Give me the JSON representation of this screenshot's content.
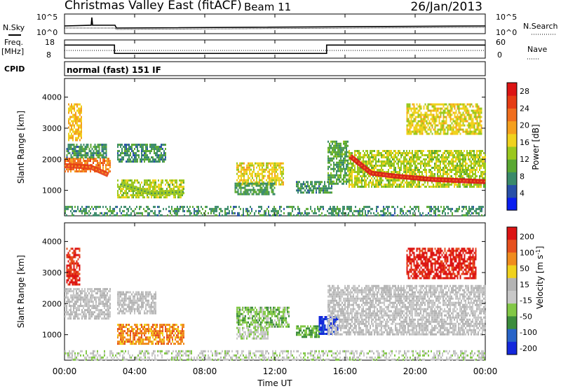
{
  "header": {
    "title": "Christmas Valley East (fitACF)",
    "beam": "Beam 11",
    "date": "26/Jan/2013"
  },
  "noise_panel": {
    "left_label": "N.Sky",
    "right_label": "N.Search",
    "y_ticks_left": [
      "10^5",
      "10^0"
    ],
    "y_ticks_right": [
      "10^5",
      "10^0"
    ]
  },
  "freq_panel": {
    "left_label": "Freq.",
    "left_unit": "[MHz]",
    "right_label": "Nave",
    "y_ticks_left": [
      "18",
      "8"
    ],
    "y_ticks_right": [
      "60",
      "0"
    ],
    "freq_steps": [
      {
        "t": 0.0,
        "f": 15.2
      },
      {
        "t": 2.85,
        "f": 10.6
      },
      {
        "t": 14.95,
        "f": 15.2
      },
      {
        "t": 24.0,
        "f": 15.2
      }
    ]
  },
  "cpid": {
    "label": "CPID",
    "value": "normal (fast) 151 IF"
  },
  "x_axis": {
    "label": "Time UT",
    "ticks": [
      "00:00",
      "04:00",
      "08:00",
      "12:00",
      "16:00",
      "20:00",
      "00:00"
    ],
    "tick_hours": [
      0,
      4,
      8,
      12,
      16,
      20,
      24
    ],
    "range": [
      0,
      24
    ]
  },
  "colors": {
    "power_scale": [
      "#0a1ef0",
      "#2850a8",
      "#3a8a6a",
      "#5aa832",
      "#9ac81e",
      "#f0d21e",
      "#f5a01e",
      "#f06e1e",
      "#e63c14",
      "#dc1414"
    ],
    "velocity_scale": [
      "#1428dc",
      "#2864c8",
      "#3c8c3c",
      "#82c846",
      "#c8c8c8",
      "#b4b4b4",
      "#f0d21e",
      "#f08c1e",
      "#e6501e",
      "#dc1414"
    ]
  },
  "chart_data": [
    {
      "type": "heatmap",
      "title": "",
      "ylabel": "Slant Range [km]",
      "xlabel": "",
      "y_ticks": [
        "1000",
        "2000",
        "3000",
        "4000"
      ],
      "y_tick_values": [
        1000,
        2000,
        3000,
        4000
      ],
      "ylim": [
        180,
        4600
      ],
      "xlim": [
        0,
        24
      ],
      "colorbar": {
        "label": "Power [dB]",
        "ticks": [
          "4",
          "8",
          "12",
          "16",
          "20",
          "24",
          "28"
        ],
        "tick_values": [
          4,
          8,
          12,
          16,
          20,
          24,
          28
        ],
        "range": [
          0,
          30
        ]
      },
      "regions": [
        {
          "t0": 0.0,
          "t1": 2.6,
          "r0": 1600,
          "r1": 2050,
          "value": 22
        },
        {
          "t0": 0.1,
          "t1": 2.4,
          "r0": 2050,
          "r1": 2500,
          "value": 8
        },
        {
          "t0": 0.2,
          "t1": 1.0,
          "r0": 2600,
          "r1": 3800,
          "value": 18
        },
        {
          "t0": 3.0,
          "t1": 5.8,
          "r0": 1950,
          "r1": 2500,
          "value": 8
        },
        {
          "t0": 3.0,
          "t1": 6.8,
          "r0": 750,
          "r1": 1350,
          "value": 14
        },
        {
          "t0": 9.8,
          "t1": 12.5,
          "r0": 1200,
          "r1": 1900,
          "value": 16
        },
        {
          "t0": 9.7,
          "t1": 12.0,
          "r0": 900,
          "r1": 1250,
          "value": 9
        },
        {
          "t0": 13.2,
          "t1": 15.2,
          "r0": 950,
          "r1": 1300,
          "value": 8
        },
        {
          "t0": 15.0,
          "t1": 16.2,
          "r0": 1200,
          "r1": 2600,
          "value": 10
        },
        {
          "t0": 16.2,
          "t1": 24.0,
          "r0": 1100,
          "r1": 2300,
          "value": 14
        },
        {
          "t0": 19.5,
          "t1": 23.8,
          "r0": 2800,
          "r1": 3800,
          "value": 16
        },
        {
          "t0": 0.0,
          "t1": 24.0,
          "r0": 180,
          "r1": 500,
          "value": 8
        }
      ],
      "ridges": [
        {
          "points": [
            [
              0.0,
              1800
            ],
            [
              1.5,
              1750
            ],
            [
              2.5,
              1500
            ]
          ],
          "value": 26
        },
        {
          "points": [
            [
              16.3,
              2100
            ],
            [
              17.5,
              1550
            ],
            [
              19.0,
              1450
            ],
            [
              21.0,
              1350
            ],
            [
              24.0,
              1280
            ]
          ],
          "value": 29
        },
        {
          "points": [
            [
              3.2,
              1200
            ],
            [
              5.0,
              900
            ],
            [
              6.8,
              950
            ]
          ],
          "value": 14
        }
      ]
    },
    {
      "type": "heatmap",
      "title": "",
      "ylabel": "Slant Range [km]",
      "xlabel": "Time UT",
      "y_ticks": [
        "1000",
        "2000",
        "3000",
        "4000"
      ],
      "y_tick_values": [
        1000,
        2000,
        3000,
        4000
      ],
      "ylim": [
        180,
        4600
      ],
      "xlim": [
        0,
        24
      ],
      "colorbar": {
        "label": "Velocity [m s^-1]",
        "ticks": [
          "200",
          "100",
          "50",
          "15",
          "-15",
          "-50",
          "-100",
          "-200"
        ],
        "tick_values": [
          200,
          100,
          50,
          15,
          -15,
          -50,
          -100,
          -200
        ],
        "range": [
          -240,
          240
        ]
      },
      "regions": [
        {
          "t0": 0.0,
          "t1": 2.6,
          "r0": 1500,
          "r1": 2500,
          "value": 0
        },
        {
          "t0": 0.1,
          "t1": 0.9,
          "r0": 2600,
          "r1": 3800,
          "value": 200
        },
        {
          "t0": 3.0,
          "t1": 5.2,
          "r0": 1700,
          "r1": 2400,
          "value": 0
        },
        {
          "t0": 3.0,
          "t1": 6.8,
          "r0": 700,
          "r1": 1350,
          "value": 120
        },
        {
          "t0": 9.8,
          "t1": 12.8,
          "r0": 1250,
          "r1": 1900,
          "value": -70
        },
        {
          "t0": 9.8,
          "t1": 11.6,
          "r0": 900,
          "r1": 1250,
          "value": -40
        },
        {
          "t0": 13.2,
          "t1": 14.5,
          "r0": 900,
          "r1": 1300,
          "value": -90
        },
        {
          "t0": 14.5,
          "t1": 15.6,
          "r0": 1000,
          "r1": 1600,
          "value": -220
        },
        {
          "t0": 15.0,
          "t1": 24.0,
          "r0": 1000,
          "r1": 2600,
          "value": 0
        },
        {
          "t0": 19.5,
          "t1": 23.5,
          "r0": 2800,
          "r1": 3800,
          "value": 210
        },
        {
          "t0": 0.0,
          "t1": 24.0,
          "r0": 180,
          "r1": 500,
          "value": -30
        }
      ],
      "ridges": []
    }
  ]
}
